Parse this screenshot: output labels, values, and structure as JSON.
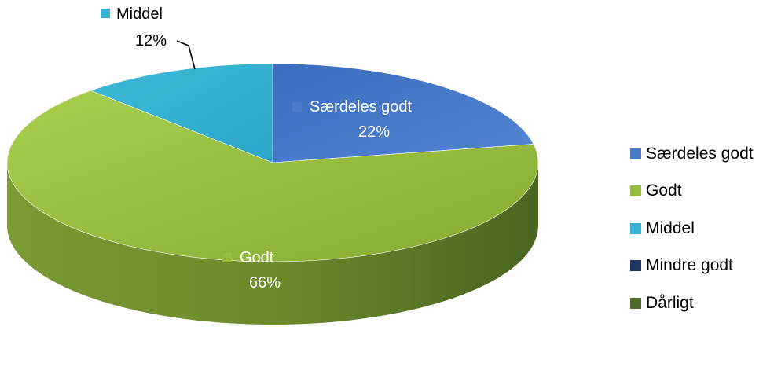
{
  "chart_data": {
    "type": "pie",
    "categories": [
      "Særdeles godt",
      "Godt",
      "Middel",
      "Mindre godt",
      "Dårligt"
    ],
    "values": [
      22,
      66,
      12,
      0,
      0
    ],
    "value_labels": [
      "22%",
      "66%",
      "12%",
      "",
      ""
    ],
    "colors": [
      "#4a7ac8",
      "#97bd3e",
      "#35b1d1",
      "#1f3864",
      "#4f6a2a"
    ],
    "legend_position": "right",
    "style": "3d"
  }
}
